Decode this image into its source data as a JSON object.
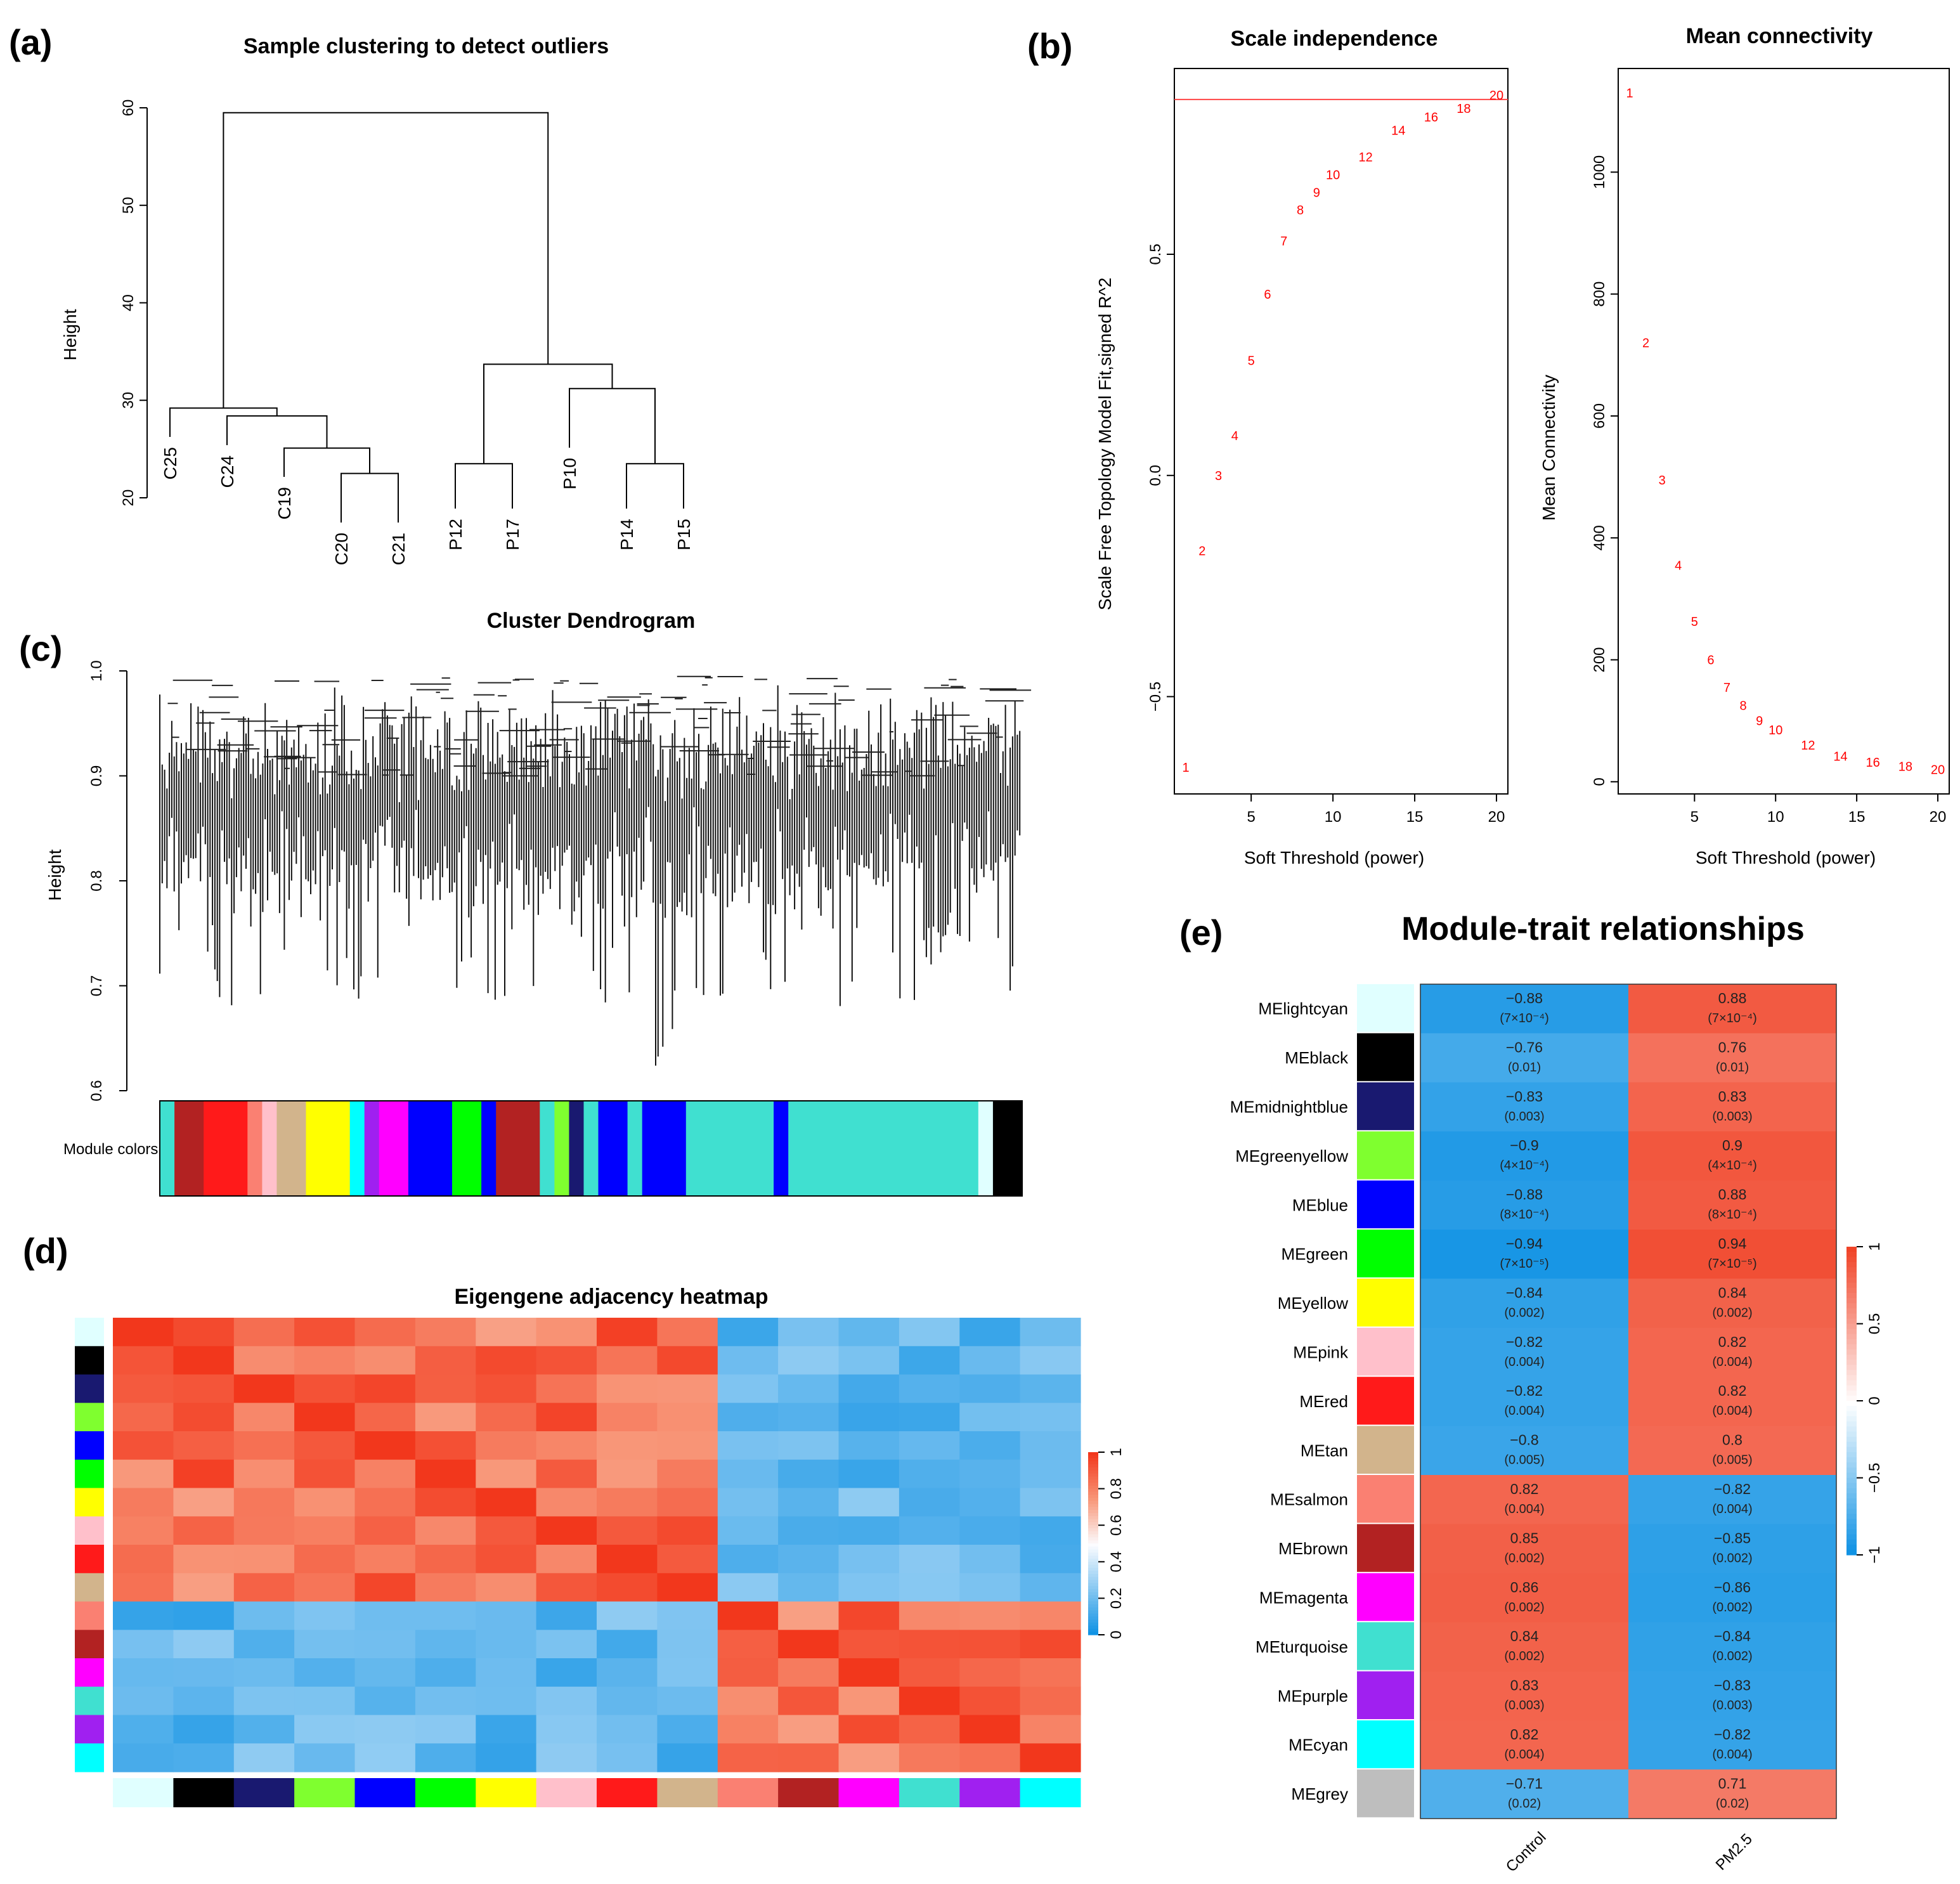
{
  "panel_labels": [
    "(a)",
    "(b)",
    "(c)",
    "(d)",
    "(e)"
  ],
  "chart_data": [
    {
      "id": "a",
      "type": "dendrogram",
      "title": "Sample clustering to detect outliers",
      "ylabel": "Height",
      "ylim": [
        20,
        60
      ],
      "yticks": [
        "20",
        "30",
        "40",
        "50",
        "60"
      ],
      "leaves": [
        "C25",
        "C24",
        "C19",
        "C20",
        "C21",
        "P12",
        "P17",
        "P10",
        "P14",
        "P15"
      ],
      "merges": [
        {
          "left": "C20",
          "right": "C21",
          "height": 22.5
        },
        {
          "left": "C19",
          "right": "[C20,C21]",
          "height": 25.1
        },
        {
          "left": "C24",
          "right": "[C19,C20,C21]",
          "height": 28.4
        },
        {
          "left": "C25",
          "right": "[C24,C19,C20,C21]",
          "height": 29.2
        },
        {
          "left": "P14",
          "right": "P15",
          "height": 23.5
        },
        {
          "left": "P10",
          "right": "[P14,P15]",
          "height": 31.2
        },
        {
          "left": "P12",
          "right": "P17",
          "height": 23.5
        },
        {
          "left": "[P12,P17]",
          "right": "[P10,P14,P15]",
          "height": 33.7
        },
        {
          "left": "[C]",
          "right": "[P]",
          "height": 59.5
        }
      ]
    },
    {
      "id": "b1",
      "type": "scatter",
      "title": "Scale independence",
      "xlabel": "Soft Threshold (power)",
      "ylabel": "Scale Free Topology Model Fit,signed R^2",
      "xlim": [
        1,
        20
      ],
      "ylim": [
        -0.72,
        0.92
      ],
      "xticks": [
        "5",
        "10",
        "15",
        "20"
      ],
      "yticks": [
        "-0.5",
        "0.0",
        "0.5"
      ],
      "cutoff": 0.85,
      "powers": [
        "1",
        "2",
        "3",
        "4",
        "5",
        "6",
        "7",
        "8",
        "9",
        "10",
        "12",
        "14",
        "16",
        "18",
        "20"
      ],
      "x": [
        1,
        2,
        3,
        4,
        5,
        6,
        7,
        8,
        9,
        10,
        12,
        14,
        16,
        18,
        20
      ],
      "y": [
        -0.66,
        -0.17,
        0.0,
        0.09,
        0.26,
        0.41,
        0.53,
        0.6,
        0.64,
        0.68,
        0.72,
        0.78,
        0.81,
        0.83,
        0.86
      ]
    },
    {
      "id": "b2",
      "type": "scatter",
      "title": "Mean connectivity",
      "xlabel": "Soft Threshold (power)",
      "ylabel": "Mean Connectivity",
      "xlim": [
        1,
        20
      ],
      "ylim": [
        -20,
        1170
      ],
      "xticks": [
        "5",
        "10",
        "15",
        "20"
      ],
      "yticks": [
        "0",
        "200",
        "400",
        "600",
        "800",
        "1000"
      ],
      "powers": [
        "1",
        "2",
        "3",
        "4",
        "5",
        "6",
        "7",
        "8",
        "9",
        "10",
        "12",
        "14",
        "16",
        "18",
        "20"
      ],
      "x": [
        1,
        2,
        3,
        4,
        5,
        6,
        7,
        8,
        9,
        10,
        12,
        14,
        16,
        18,
        20
      ],
      "y": [
        1130,
        720,
        495,
        355,
        263,
        200,
        155,
        125,
        100,
        85,
        60,
        42,
        32,
        25,
        20
      ]
    },
    {
      "id": "c",
      "type": "dendrogram",
      "title": "Cluster Dendrogram",
      "ylabel": "Height",
      "ylim": [
        0.6,
        1.0
      ],
      "yticks": [
        "0.6",
        "0.7",
        "0.8",
        "0.9",
        "1.0"
      ],
      "module_colors_label": "Module colors",
      "module_colors": [
        "turquoise",
        "brown",
        "red",
        "salmon",
        "pink",
        "tan",
        "yellow",
        "cyan",
        "purple",
        "magenta",
        "blue",
        "green",
        "blue",
        "brown",
        "turquoise",
        "greenyellow",
        "midnightblue",
        "turquoise",
        "blue",
        "turquoise",
        "blue",
        "turquoise",
        "blue",
        "turquoise",
        "turquoise",
        "lightcyan",
        "black"
      ]
    },
    {
      "id": "d",
      "type": "heatmap",
      "title": "Eigengene adjacency heatmap",
      "modules": [
        "lightcyan",
        "black",
        "midnightblue",
        "greenyellow",
        "blue",
        "green",
        "yellow",
        "pink",
        "red",
        "tan",
        "salmon",
        "brown",
        "magenta",
        "turquoise",
        "purple",
        "cyan"
      ],
      "colorbar_ticks": [
        "0",
        "0.2",
        "0.4",
        "0.6",
        "0.8",
        "1"
      ],
      "range": [
        0,
        1
      ]
    },
    {
      "id": "e",
      "type": "heatmap",
      "title": "Module-trait relationships",
      "columns": [
        "Control",
        "PM2.5"
      ],
      "colorbar_ticks": [
        "-1",
        "-0.5",
        "0",
        "0.5",
        "1"
      ],
      "range": [
        -1,
        1
      ],
      "rows": [
        {
          "module": "MElightcyan",
          "color": "lightcyan",
          "control": -0.88,
          "control_p": "(7×10⁻⁴)",
          "pm": 0.88,
          "pm_p": "(7×10⁻⁴)"
        },
        {
          "module": "MEblack",
          "color": "black",
          "control": -0.76,
          "control_p": "(0.01)",
          "pm": 0.76,
          "pm_p": "(0.01)"
        },
        {
          "module": "MEmidnightblue",
          "color": "midnightblue",
          "control": -0.83,
          "control_p": "(0.003)",
          "pm": 0.83,
          "pm_p": "(0.003)"
        },
        {
          "module": "MEgreenyellow",
          "color": "greenyellow",
          "control": -0.9,
          "control_p": "(4×10⁻⁴)",
          "pm": 0.9,
          "pm_p": "(4×10⁻⁴)"
        },
        {
          "module": "MEblue",
          "color": "blue",
          "control": -0.88,
          "control_p": "(8×10⁻⁴)",
          "pm": 0.88,
          "pm_p": "(8×10⁻⁴)"
        },
        {
          "module": "MEgreen",
          "color": "green",
          "control": -0.94,
          "control_p": "(7×10⁻⁵)",
          "pm": 0.94,
          "pm_p": "(7×10⁻⁵)"
        },
        {
          "module": "MEyellow",
          "color": "yellow",
          "control": -0.84,
          "control_p": "(0.002)",
          "pm": 0.84,
          "pm_p": "(0.002)"
        },
        {
          "module": "MEpink",
          "color": "pink",
          "control": -0.82,
          "control_p": "(0.004)",
          "pm": 0.82,
          "pm_p": "(0.004)"
        },
        {
          "module": "MEred",
          "color": "red",
          "control": -0.82,
          "control_p": "(0.004)",
          "pm": 0.82,
          "pm_p": "(0.004)"
        },
        {
          "module": "MEtan",
          "color": "tan",
          "control": -0.8,
          "control_p": "(0.005)",
          "pm": 0.8,
          "pm_p": "(0.005)"
        },
        {
          "module": "MEsalmon",
          "color": "salmon",
          "control": 0.82,
          "control_p": "(0.004)",
          "pm": -0.82,
          "pm_p": "(0.004)"
        },
        {
          "module": "MEbrown",
          "color": "brown",
          "control": 0.85,
          "control_p": "(0.002)",
          "pm": -0.85,
          "pm_p": "(0.002)"
        },
        {
          "module": "MEmagenta",
          "color": "magenta",
          "control": 0.86,
          "control_p": "(0.002)",
          "pm": -0.86,
          "pm_p": "(0.002)"
        },
        {
          "module": "MEturquoise",
          "color": "turquoise",
          "control": 0.84,
          "control_p": "(0.002)",
          "pm": -0.84,
          "pm_p": "(0.002)"
        },
        {
          "module": "MEpurple",
          "color": "purple",
          "control": 0.83,
          "control_p": "(0.003)",
          "pm": -0.83,
          "pm_p": "(0.003)"
        },
        {
          "module": "MEcyan",
          "color": "cyan",
          "control": 0.82,
          "control_p": "(0.004)",
          "pm": -0.82,
          "pm_p": "(0.004)"
        },
        {
          "module": "MEgrey",
          "color": "grey",
          "control": -0.71,
          "control_p": "(0.02)",
          "pm": 0.71,
          "pm_p": "(0.02)"
        }
      ]
    }
  ],
  "module_color_hex": {
    "lightcyan": "#e0ffff",
    "black": "#000000",
    "midnightblue": "#191970",
    "greenyellow": "#7fff2f",
    "blue": "#0000ff",
    "green": "#00ff00",
    "yellow": "#ffff00",
    "pink": "#ffc0cb",
    "red": "#ff1a1a",
    "tan": "#d2b48c",
    "salmon": "#fa8072",
    "brown": "#b22222",
    "magenta": "#ff00ff",
    "turquoise": "#40e0d0",
    "purple": "#a020f0",
    "cyan": "#00ffff",
    "grey": "#bebebe"
  }
}
